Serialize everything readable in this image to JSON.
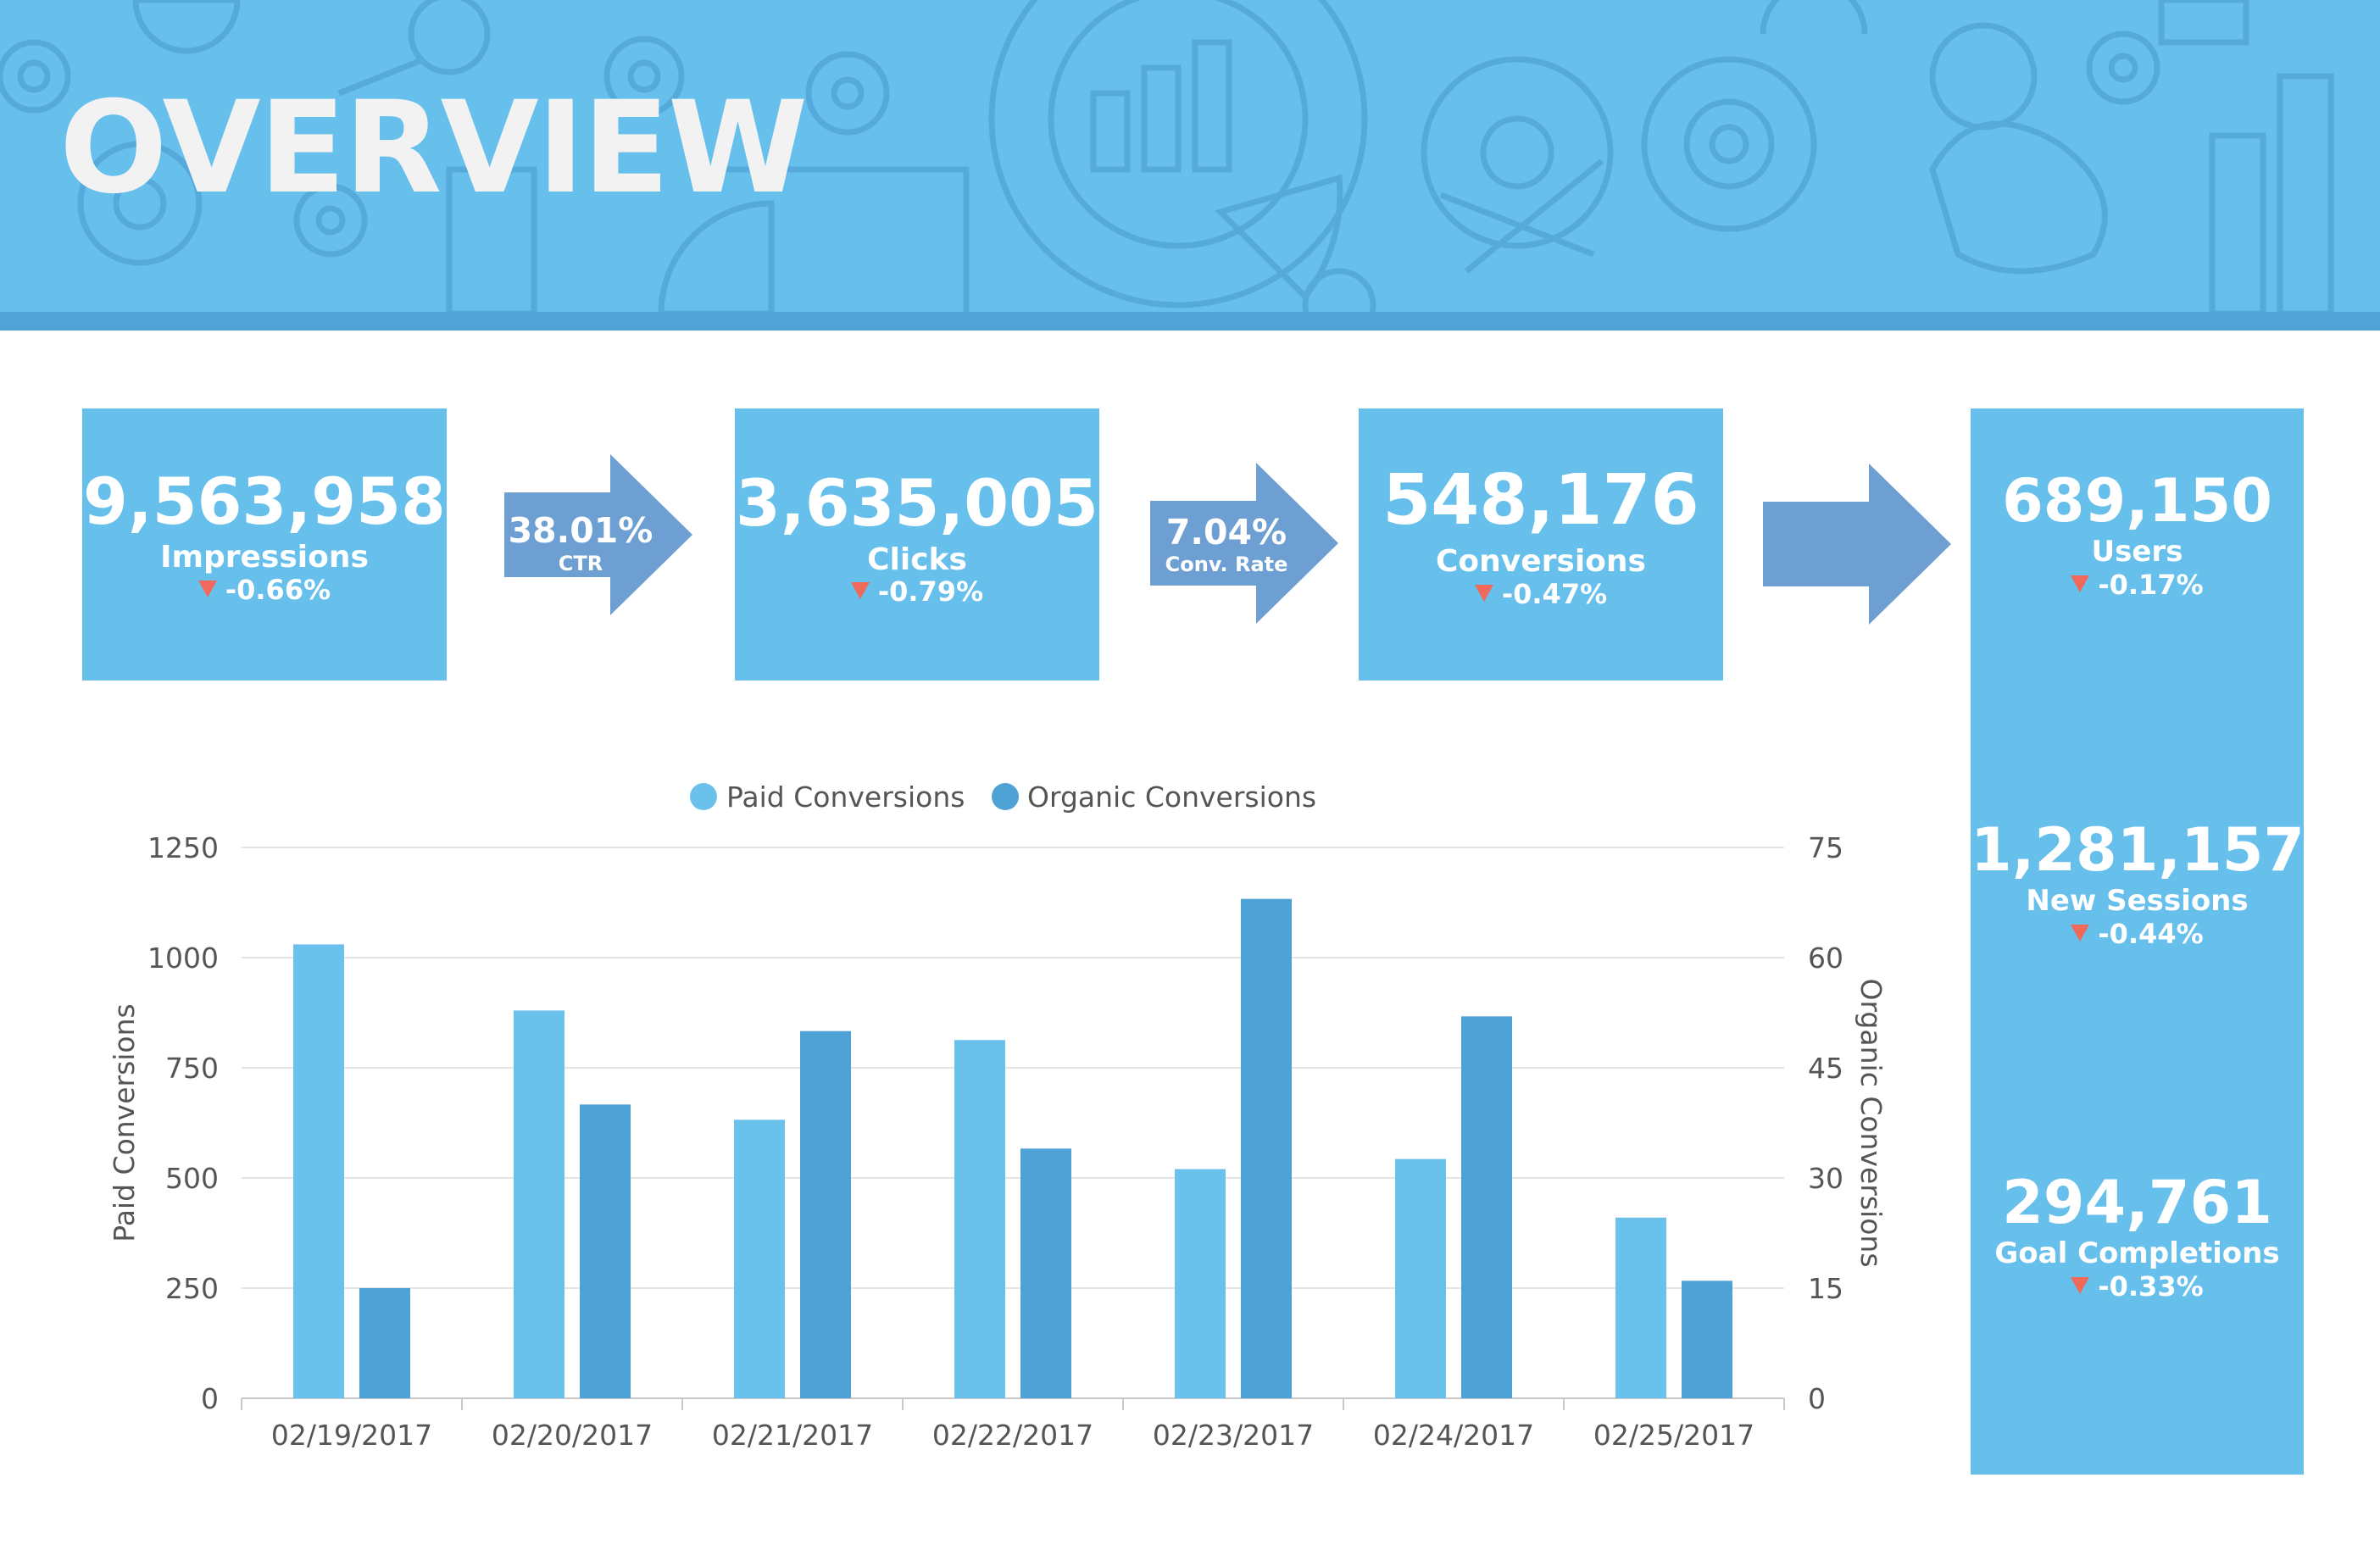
{
  "header": {
    "title": "OVERVIEW"
  },
  "funnel": [
    {
      "value": "9,563,958",
      "label": "Impressions",
      "delta": "-0.66%"
    },
    {
      "value": "3,635,005",
      "label": "Clicks",
      "delta": "-0.79%"
    },
    {
      "value": "548,176",
      "label": "Conversions",
      "delta": "-0.47%"
    }
  ],
  "rates": [
    {
      "value": "38.01%",
      "label": "CTR"
    },
    {
      "value": "7.04%",
      "label": "Conv. Rate"
    }
  ],
  "side_panel": [
    {
      "value": "689,150",
      "label": "Users",
      "delta": "-0.17%"
    },
    {
      "value": "1,281,157",
      "label": "New Sessions",
      "delta": "-0.44%"
    },
    {
      "value": "294,761",
      "label": "Goal Completions",
      "delta": "-0.33%"
    }
  ],
  "colors": {
    "banner": "#67bfec",
    "card": "#67bfec",
    "arrow": "#6e9fd2",
    "paid": "#6ac1ec",
    "organic": "#4fa2d6",
    "negative": "#f0695a"
  },
  "chart_data": {
    "type": "bar",
    "categories": [
      "02/19/2017",
      "02/20/2017",
      "02/21/2017",
      "02/22/2017",
      "02/23/2017",
      "02/24/2017",
      "02/25/2017"
    ],
    "series": [
      {
        "name": "Paid Conversions",
        "axis": "left",
        "values": [
          1030,
          880,
          632,
          813,
          520,
          543,
          410
        ]
      },
      {
        "name": "Organic Conversions",
        "axis": "right",
        "values": [
          15,
          40,
          50,
          34,
          68,
          52,
          16
        ]
      }
    ],
    "ylabel": "Paid Conversions",
    "y2label": "Organic Conversions",
    "ylim": [
      0,
      1250
    ],
    "y2lim": [
      0,
      75
    ],
    "yticks": [
      "0",
      "250",
      "500",
      "750",
      "1000",
      "1250"
    ],
    "y2ticks": [
      "0",
      "15",
      "30",
      "45",
      "60",
      "75"
    ],
    "grid": true,
    "legend": "top-center"
  }
}
